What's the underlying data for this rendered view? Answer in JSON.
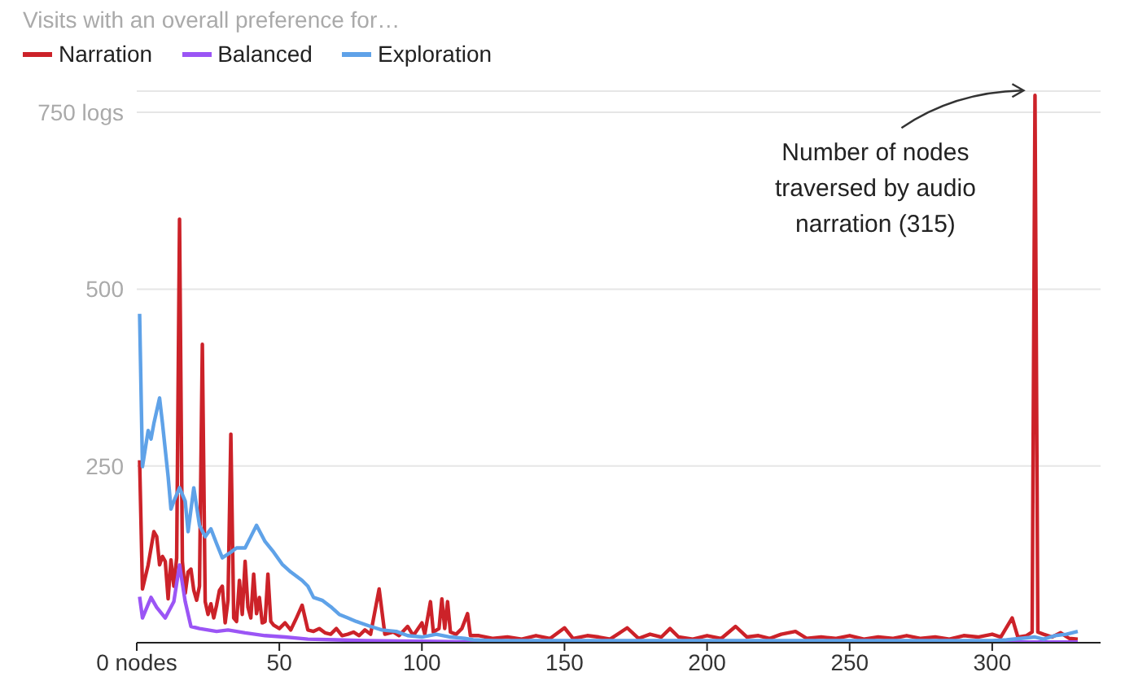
{
  "chart_data": {
    "type": "line",
    "legend_title": "Visits with an overall preference for…",
    "legend": "top left",
    "grid": "y",
    "xlim": [
      0,
      338
    ],
    "xticks": [
      {
        "value": 0,
        "label": "0 nodes"
      },
      50,
      100,
      150,
      200,
      250,
      300
    ],
    "ylim": [
      0,
      780
    ],
    "yticks": [
      {
        "value": 0,
        "label": null
      },
      250,
      500,
      {
        "value": 750,
        "label": "750 logs"
      }
    ],
    "annotations": [
      {
        "text": "Number of nodes traversed by audio narration (315)",
        "x": 315,
        "y": 774
      }
    ],
    "series": [
      {
        "name": "Narration",
        "color": "#cc2229",
        "x": [
          1,
          2,
          4,
          6,
          7,
          8,
          9,
          10,
          11,
          12,
          13,
          14,
          15,
          16,
          17,
          18,
          19,
          20,
          21,
          22,
          23,
          24,
          25,
          26,
          27,
          28,
          29,
          30,
          31,
          32,
          33,
          34,
          35,
          36,
          37,
          38,
          39,
          40,
          41,
          42,
          43,
          44,
          45,
          46,
          47,
          48,
          50,
          52,
          54,
          56,
          58,
          60,
          62,
          64,
          66,
          68,
          70,
          72,
          74,
          76,
          78,
          80,
          82,
          85,
          87,
          90,
          92,
          95,
          97,
          100,
          101,
          103,
          104,
          106,
          107,
          108,
          109,
          110,
          112,
          114,
          116,
          117,
          120,
          125,
          130,
          135,
          140,
          145,
          150,
          153,
          158,
          162,
          166,
          172,
          176,
          180,
          184,
          187,
          190,
          195,
          200,
          205,
          210,
          214,
          218,
          222,
          226,
          231,
          235,
          240,
          245,
          250,
          255,
          260,
          265,
          270,
          275,
          280,
          285,
          290,
          295,
          300,
          303,
          307,
          309,
          312,
          314,
          315,
          316,
          318,
          321,
          324,
          327,
          330
        ],
        "values": [
          258,
          76,
          110,
          157,
          150,
          110,
          122,
          115,
          62,
          117,
          80,
          120,
          599,
          115,
          70,
          100,
          104,
          74,
          60,
          80,
          422,
          58,
          40,
          55,
          35,
          53,
          74,
          80,
          28,
          60,
          295,
          35,
          30,
          88,
          40,
          115,
          50,
          35,
          97,
          41,
          64,
          28,
          30,
          97,
          30,
          25,
          20,
          28,
          18,
          35,
          53,
          18,
          16,
          20,
          14,
          12,
          20,
          10,
          12,
          15,
          10,
          18,
          12,
          76,
          12,
          15,
          10,
          23,
          10,
          28,
          12,
          58,
          15,
          20,
          62,
          20,
          58,
          15,
          12,
          20,
          41,
          10,
          10,
          6,
          8,
          5,
          10,
          6,
          21,
          6,
          10,
          8,
          5,
          21,
          6,
          12,
          8,
          20,
          8,
          5,
          10,
          6,
          23,
          8,
          10,
          6,
          12,
          16,
          6,
          8,
          6,
          10,
          5,
          8,
          6,
          10,
          6,
          8,
          5,
          10,
          8,
          12,
          8,
          35,
          8,
          10,
          15,
          774,
          15,
          12,
          8,
          14,
          6,
          5
        ]
      },
      {
        "name": "Balanced",
        "color": "#9b55f5",
        "x": [
          1,
          2,
          5,
          7,
          10,
          13,
          15,
          17,
          19,
          22,
          25,
          28,
          32,
          38,
          45,
          52,
          60,
          70,
          80,
          100,
          120,
          150,
          200,
          250,
          300,
          330
        ],
        "values": [
          65,
          35,
          64,
          50,
          35,
          58,
          110,
          58,
          23,
          20,
          18,
          16,
          18,
          14,
          10,
          8,
          5,
          4,
          3,
          2,
          1,
          1,
          1,
          1,
          1,
          1
        ]
      },
      {
        "name": "Exploration",
        "color": "#5fa2e8",
        "x": [
          1,
          2,
          4,
          5,
          6,
          8,
          9,
          11,
          12,
          13,
          15,
          17,
          18,
          20,
          22,
          24,
          26,
          28,
          30,
          33,
          35,
          38,
          40,
          42,
          45,
          48,
          51,
          54,
          58,
          60,
          62,
          65,
          68,
          71,
          74,
          77,
          82,
          86,
          91,
          95,
          100,
          105,
          110,
          115,
          118,
          125,
          150,
          200,
          250,
          300,
          305,
          310,
          315,
          318,
          322,
          326,
          330
        ],
        "values": [
          465,
          249,
          300,
          288,
          310,
          346,
          311,
          235,
          189,
          200,
          219,
          200,
          157,
          219,
          166,
          150,
          161,
          140,
          120,
          128,
          134,
          134,
          150,
          166,
          143,
          128,
          111,
          100,
          88,
          80,
          64,
          60,
          51,
          40,
          35,
          30,
          23,
          18,
          16,
          10,
          8,
          12,
          8,
          6,
          4,
          3,
          3,
          3,
          3,
          3,
          4,
          6,
          8,
          5,
          10,
          12,
          16
        ]
      }
    ]
  }
}
